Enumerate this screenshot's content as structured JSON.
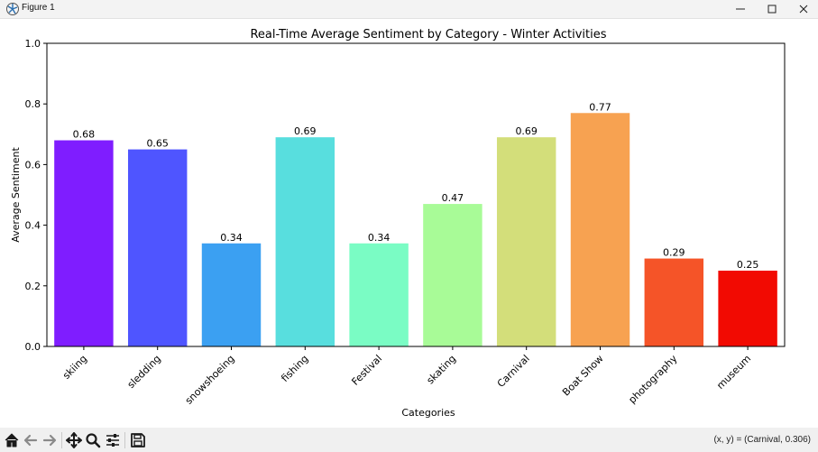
{
  "window": {
    "title": "Figure 1",
    "icons": [
      "matplotlib-icon",
      "minimize-icon",
      "maximize-icon",
      "close-icon"
    ]
  },
  "toolbar": {
    "icons": [
      "home-icon",
      "back-icon",
      "forward-icon",
      "pan-icon",
      "zoom-icon",
      "configure-subplots-icon",
      "save-icon"
    ],
    "coords_text": "(x, y) = (Carnival, 0.306)"
  },
  "chart_data": {
    "type": "bar",
    "title": "Real-Time Average Sentiment by Category - Winter Activities",
    "xlabel": "Categories",
    "ylabel": "Average Sentiment",
    "ylim": [
      0,
      1
    ],
    "yticks": [
      "0.0",
      "0.2",
      "0.4",
      "0.6",
      "0.8",
      "1.0"
    ],
    "grid": false,
    "categories": [
      "skiing",
      "sledding",
      "snowshoeing",
      "fishing",
      "Festival",
      "skating",
      "Carnival",
      "Boat Show",
      "photography",
      "museum"
    ],
    "values": [
      0.68,
      0.65,
      0.34,
      0.69,
      0.34,
      0.47,
      0.69,
      0.77,
      0.29,
      0.25
    ],
    "value_labels": [
      "0.68",
      "0.65",
      "0.34",
      "0.69",
      "0.34",
      "0.47",
      "0.69",
      "0.77",
      "0.29",
      "0.25"
    ],
    "colors": [
      "#7f1dff",
      "#4f55ff",
      "#3ba0f2",
      "#58dede",
      "#7afcc4",
      "#a8fb97",
      "#d3de7a",
      "#f7a251",
      "#f55428",
      "#f20a02"
    ]
  }
}
